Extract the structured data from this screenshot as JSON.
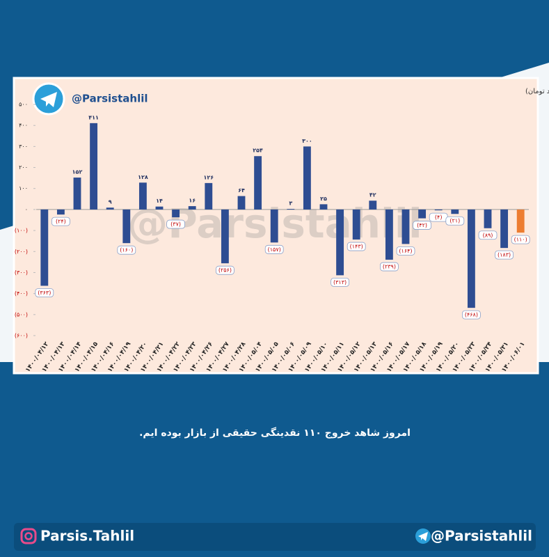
{
  "chart_data": {
    "type": "bar",
    "title": "جریان ارزش تغییر مالکیت از حقوقی به حقیقی در ۳۰ روز کاری اخیر (میلیارد تومان)",
    "categories": [
      "۱۴۰۰/۰۴/۱۲",
      "۱۴۰۰/۰۴/۱۳",
      "۱۴۰۰/۰۴/۱۴",
      "۱۴۰۰/۰۴/۱۵",
      "۱۴۰۰/۰۴/۱۶",
      "۱۴۰۰/۰۴/۱۹",
      "۱۴۰۰/۰۴/۲۰",
      "۱۴۰۰/۰۴/۲۱",
      "۱۴۰۰/۰۴/۲۲",
      "۱۴۰۰/۰۴/۲۳",
      "۱۴۰۰/۰۴/۲۶",
      "۱۴۰۰/۰۴/۲۷",
      "۱۴۰۰/۰۴/۲۸",
      "۱۴۰۰/۰۵/۰۴",
      "۱۴۰۰/۰۵/۰۵",
      "۱۴۰۰/۰۵/۰۶",
      "۱۴۰۰/۰۵/۰۹",
      "۱۴۰۰/۰۵/۱۰",
      "۱۴۰۰/۰۵/۱۱",
      "۱۴۰۰/۰۵/۱۲",
      "۱۴۰۰/۰۵/۱۳",
      "۱۴۰۰/۰۵/۱۶",
      "۱۴۰۰/۰۵/۱۷",
      "۱۴۰۰/۰۵/۱۸",
      "۱۴۰۰/۰۵/۱۹",
      "۱۴۰۰/۰۵/۲۰",
      "۱۴۰۰/۰۵/۲۳",
      "۱۴۰۰/۰۵/۲۴",
      "۱۴۰۰/۰۵/۳۱",
      "۱۴۰۰/۰۶/۰۱"
    ],
    "values": [
      -363,
      -24,
      152,
      411,
      9,
      -160,
      128,
      14,
      -37,
      16,
      126,
      -256,
      64,
      254,
      -157,
      3,
      300,
      25,
      -313,
      -143,
      42,
      -239,
      -164,
      -42,
      -4,
      -21,
      -468,
      -89,
      -183,
      -110
    ],
    "value_labels": [
      "(۳۶۳)",
      "(۲۴)",
      "۱۵۲",
      "۴۱۱",
      "۹",
      "(۱۶۰)",
      "۱۲۸",
      "۱۴",
      "(۳۷)",
      "۱۶",
      "۱۲۶",
      "(۲۵۶)",
      "۶۴",
      "۲۵۴",
      "(۱۵۷)",
      "۳",
      "۳۰۰",
      "۲۵",
      "(۳۱۳)",
      "(۱۴۳)",
      "۴۲",
      "(۲۳۹)",
      "(۱۶۴)",
      "(۴۲)",
      "(۴)",
      "(۲۱)",
      "(۴۶۸)",
      "(۸۹)",
      "(۱۸۳)",
      "(۱۱۰)"
    ],
    "colors": [
      "#2e4d92",
      "#2e4d92",
      "#2e4d92",
      "#2e4d92",
      "#2e4d92",
      "#2e4d92",
      "#2e4d92",
      "#2e4d92",
      "#2e4d92",
      "#2e4d92",
      "#2e4d92",
      "#2e4d92",
      "#2e4d92",
      "#2e4d92",
      "#2e4d92",
      "#2e4d92",
      "#2e4d92",
      "#2e4d92",
      "#2e4d92",
      "#2e4d92",
      "#2e4d92",
      "#2e4d92",
      "#2e4d92",
      "#2e4d92",
      "#2e4d92",
      "#2e4d92",
      "#2e4d92",
      "#2e4d92",
      "#2e4d92",
      "#ed7d31"
    ],
    "ylim": [
      -600,
      500
    ],
    "yticks": [
      {
        "value": 500,
        "label": "۵۰۰"
      },
      {
        "value": 400,
        "label": "۴۰۰"
      },
      {
        "value": 300,
        "label": "۳۰۰"
      },
      {
        "value": 200,
        "label": "۲۰۰"
      },
      {
        "value": 100,
        "label": "۱۰۰"
      },
      {
        "value": 0,
        "label": "۰"
      },
      {
        "value": -100,
        "label": "(۱۰۰)"
      },
      {
        "value": -200,
        "label": "(۲۰۰)"
      },
      {
        "value": -300,
        "label": "(۳۰۰)"
      },
      {
        "value": -400,
        "label": "(۴۰۰)"
      },
      {
        "value": -500,
        "label": "(۵۰۰)"
      },
      {
        "value": -600,
        "label": "(۶۰۰)"
      }
    ],
    "grid": false
  },
  "logo_handle": "@Parsistahlil",
  "watermark": "@Parsistahlil",
  "caption": "امروز شاهد خروج ۱۱۰ نقدینگی حقیقی از بازار بوده ایم.",
  "footer": {
    "instagram": "Parsis.Tahlil",
    "telegram": "@Parsistahlil"
  }
}
